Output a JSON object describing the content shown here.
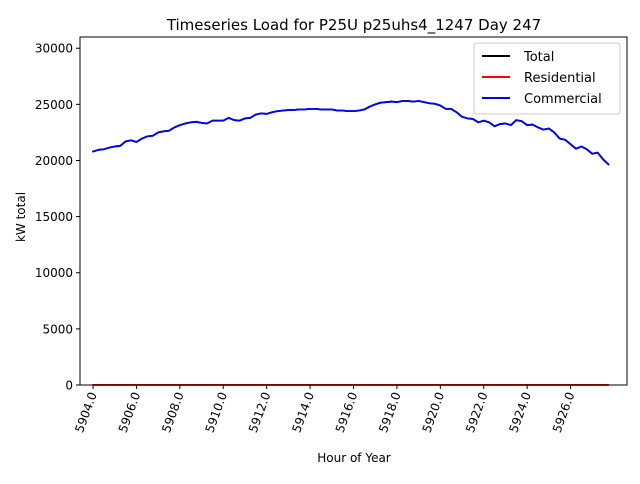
{
  "chart_data": {
    "type": "line",
    "title": "Timeseries Load for P25U p25uhs4_1247  Day 247",
    "xlabel": "Hour of Year",
    "ylabel": "kW total",
    "xlim": [
      5903.4,
      5928.6
    ],
    "ylim": [
      0,
      31000
    ],
    "xticks": [
      5904,
      5906,
      5908,
      5910,
      5912,
      5914,
      5916,
      5918,
      5920,
      5922,
      5924,
      5926
    ],
    "xtick_labels": [
      "5904.0",
      "5906.0",
      "5908.0",
      "5910.0",
      "5912.0",
      "5914.0",
      "5916.0",
      "5918.0",
      "5920.0",
      "5922.0",
      "5924.0",
      "5926.0"
    ],
    "yticks": [
      0,
      5000,
      10000,
      15000,
      20000,
      25000,
      30000
    ],
    "ytick_labels": [
      "0",
      "5000",
      "10000",
      "15000",
      "20000",
      "25000",
      "30000"
    ],
    "grid": false,
    "legend_position": "top-right",
    "x": [
      5904.0,
      5904.25,
      5904.5,
      5904.75,
      5905.0,
      5905.25,
      5905.5,
      5905.75,
      5906.0,
      5906.25,
      5906.5,
      5906.75,
      5907.0,
      5907.25,
      5907.5,
      5907.75,
      5908.0,
      5908.25,
      5908.5,
      5908.75,
      5909.0,
      5909.25,
      5909.5,
      5909.75,
      5910.0,
      5910.25,
      5910.5,
      5910.75,
      5911.0,
      5911.25,
      5911.5,
      5911.75,
      5912.0,
      5912.25,
      5912.5,
      5912.75,
      5913.0,
      5913.25,
      5913.5,
      5913.75,
      5914.0,
      5914.25,
      5914.5,
      5914.75,
      5915.0,
      5915.25,
      5915.5,
      5915.75,
      5916.0,
      5916.25,
      5916.5,
      5916.75,
      5917.0,
      5917.25,
      5917.5,
      5917.75,
      5918.0,
      5918.25,
      5918.5,
      5918.75,
      5919.0,
      5919.25,
      5919.5,
      5919.75,
      5920.0,
      5920.25,
      5920.5,
      5920.75,
      5921.0,
      5921.25,
      5921.5,
      5921.75,
      5922.0,
      5922.25,
      5922.5,
      5922.75,
      5923.0,
      5923.25,
      5923.5,
      5923.75,
      5924.0,
      5924.25,
      5924.5,
      5924.75,
      5925.0,
      5925.25,
      5925.5,
      5925.75,
      5926.0,
      5926.25,
      5926.5,
      5926.75,
      5927.0,
      5927.25,
      5927.5,
      5927.75
    ],
    "series": [
      {
        "name": "Total",
        "color": "#000000",
        "values": [
          20800,
          20950,
          21000,
          21150,
          21250,
          21300,
          21700,
          21800,
          21650,
          21950,
          22150,
          22200,
          22500,
          22600,
          22650,
          22950,
          23150,
          23300,
          23400,
          23450,
          23350,
          23300,
          23550,
          23550,
          23550,
          23800,
          23600,
          23550,
          23750,
          23800,
          24100,
          24200,
          24150,
          24300,
          24400,
          24450,
          24500,
          24500,
          24550,
          24550,
          24600,
          24600,
          24550,
          24550,
          24550,
          24450,
          24450,
          24400,
          24400,
          24450,
          24550,
          24800,
          25000,
          25150,
          25200,
          25250,
          25200,
          25300,
          25300,
          25250,
          25300,
          25200,
          25100,
          25050,
          24900,
          24600,
          24600,
          24300,
          23900,
          23750,
          23700,
          23400,
          23550,
          23400,
          23050,
          23250,
          23300,
          23150,
          23600,
          23500,
          23150,
          23200,
          22950,
          22750,
          22850,
          22500,
          21950,
          21850,
          21450,
          21050,
          21250,
          21000,
          20600,
          20700,
          20100,
          19650
        ]
      },
      {
        "name": "Residential",
        "color": "#ff0000",
        "values": [
          5,
          5,
          5,
          5,
          5,
          5,
          5,
          5,
          5,
          5,
          5,
          5,
          5,
          5,
          5,
          5,
          5,
          5,
          5,
          5,
          5,
          5,
          5,
          5,
          5,
          5,
          5,
          5,
          5,
          5,
          5,
          5,
          5,
          5,
          5,
          5,
          5,
          5,
          5,
          5,
          5,
          5,
          5,
          5,
          5,
          5,
          5,
          5,
          5,
          5,
          5,
          5,
          5,
          5,
          5,
          5,
          5,
          5,
          5,
          5,
          5,
          5,
          5,
          5,
          5,
          5,
          5,
          5,
          5,
          5,
          5,
          5,
          5,
          5,
          5,
          5,
          5,
          5,
          5,
          5,
          5,
          5,
          5,
          5,
          5,
          5,
          5,
          5,
          5,
          5,
          5,
          5,
          5,
          5,
          5,
          5
        ]
      },
      {
        "name": "Commercial",
        "color": "#0000ff",
        "values": [
          20795,
          20945,
          20995,
          21145,
          21245,
          21295,
          21695,
          21795,
          21645,
          21945,
          22145,
          22195,
          22495,
          22595,
          22645,
          22945,
          23145,
          23295,
          23395,
          23445,
          23345,
          23295,
          23545,
          23545,
          23545,
          23795,
          23595,
          23545,
          23745,
          23795,
          24095,
          24195,
          24145,
          24295,
          24395,
          24445,
          24495,
          24495,
          24545,
          24545,
          24595,
          24595,
          24545,
          24545,
          24545,
          24445,
          24445,
          24395,
          24395,
          24445,
          24545,
          24795,
          24995,
          25145,
          25195,
          25245,
          25195,
          25295,
          25295,
          25245,
          25295,
          25195,
          25095,
          25045,
          24895,
          24595,
          24595,
          24295,
          23895,
          23745,
          23695,
          23395,
          23545,
          23395,
          23045,
          23245,
          23295,
          23145,
          23595,
          23495,
          23145,
          23195,
          22945,
          22745,
          22845,
          22495,
          21945,
          21845,
          21445,
          21045,
          21245,
          20995,
          20595,
          20695,
          20095,
          19645
        ]
      }
    ]
  }
}
